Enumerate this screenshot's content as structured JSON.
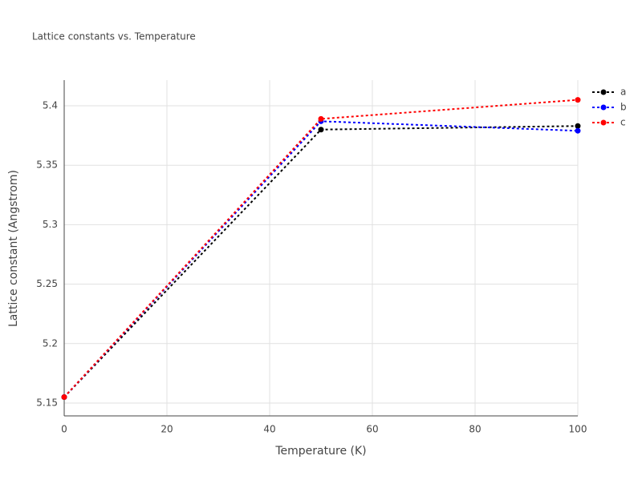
{
  "chart_data": {
    "type": "line",
    "title": "Lattice constants vs. Temperature",
    "x_label": "Temperature (K)",
    "y_label": "Lattice constant (Angstrom)",
    "x": [
      0,
      50,
      100
    ],
    "series": [
      {
        "name": "a",
        "color": "#000000",
        "values": [
          5.155,
          5.38,
          5.383
        ]
      },
      {
        "name": "b",
        "color": "#0000ff",
        "values": [
          5.155,
          5.387,
          5.379
        ]
      },
      {
        "name": "c",
        "color": "#ff0000",
        "values": [
          5.155,
          5.389,
          5.405
        ]
      }
    ],
    "xlim": [
      0,
      100
    ],
    "xticks": [
      0,
      20,
      40,
      60,
      80,
      100
    ],
    "ylim": [
      5.1392,
      5.4216
    ],
    "yticks": [
      5.15,
      5.2,
      5.25,
      5.3,
      5.35,
      5.4
    ],
    "grid": true,
    "legend": "top-right"
  }
}
